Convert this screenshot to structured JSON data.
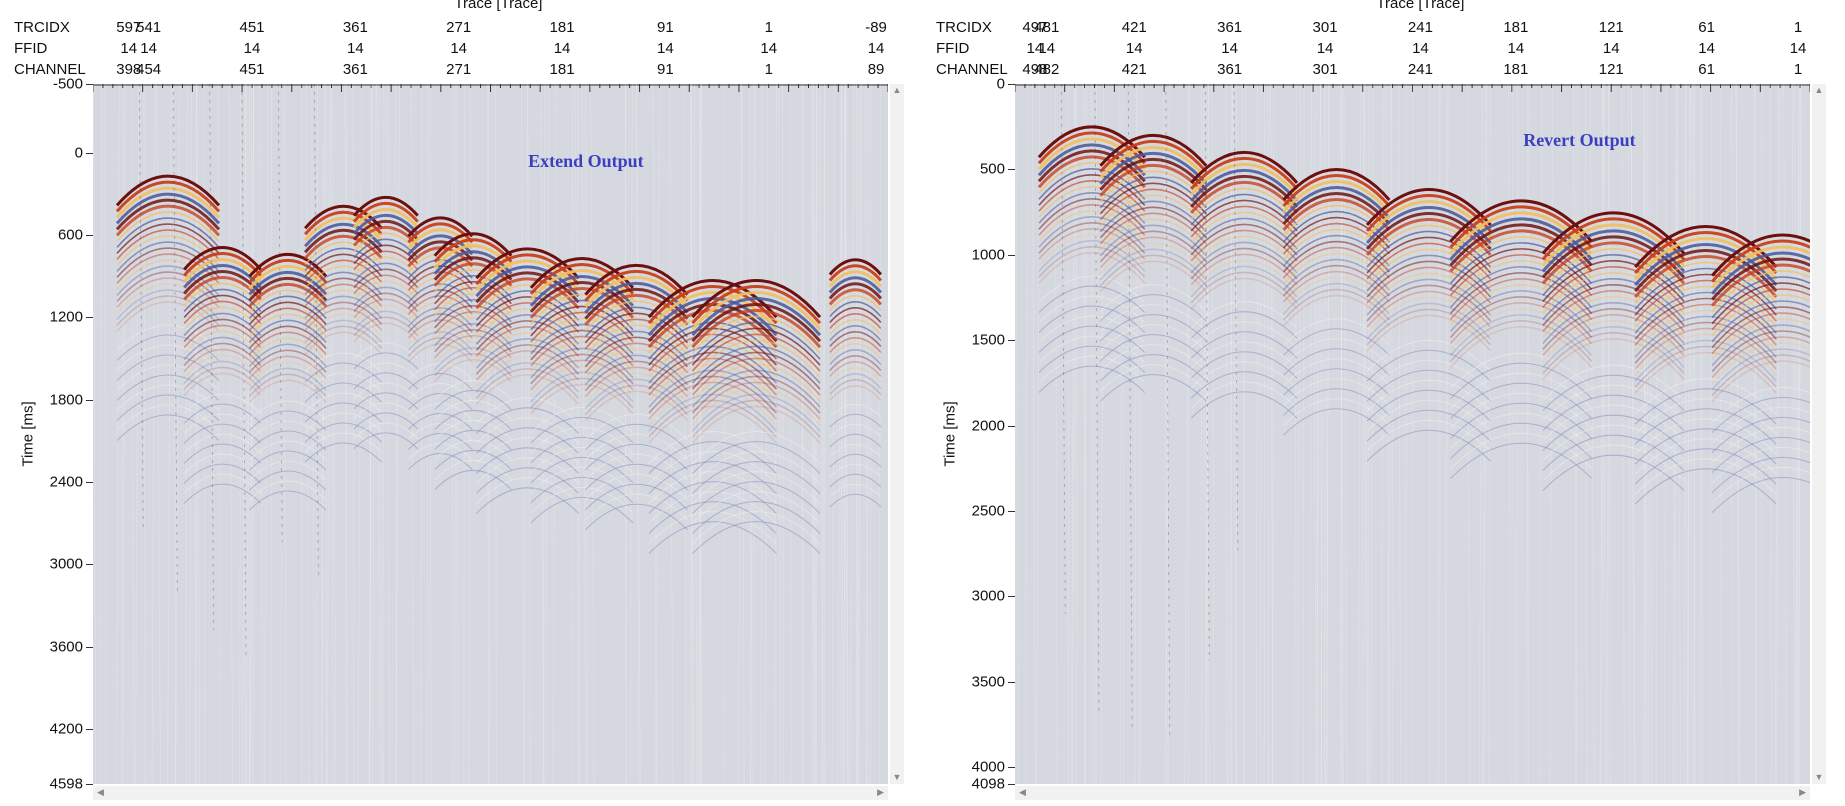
{
  "panels": [
    {
      "id": "extend",
      "label": "Extend Output",
      "axis_title": "Trace [Trace]",
      "ylabel": "Time [ms]",
      "header_rows": [
        {
          "name": "TRCIDX",
          "values": [
            "597",
            "541",
            "451",
            "361",
            "271",
            "181",
            "91",
            "1",
            "-89"
          ]
        },
        {
          "name": "FFID",
          "values": [
            "14",
            "14",
            "14",
            "14",
            "14",
            "14",
            "14",
            "14",
            "14"
          ]
        },
        {
          "name": "CHANNEL",
          "values": [
            "398",
            "454",
            "451",
            "361",
            "271",
            "181",
            "91",
            "1",
            "89"
          ]
        }
      ],
      "yticks": [
        "-500",
        "0",
        "600",
        "1200",
        "1800",
        "2400",
        "3000",
        "3600",
        "4200",
        "4598"
      ]
    },
    {
      "id": "revert",
      "label": "Revert Output",
      "axis_title": "Trace [Trace]",
      "ylabel": "Time [ms]",
      "header_rows": [
        {
          "name": "TRCIDX",
          "values": [
            "497",
            "481",
            "421",
            "361",
            "301",
            "241",
            "181",
            "121",
            "61",
            "1"
          ]
        },
        {
          "name": "FFID",
          "values": [
            "14",
            "14",
            "14",
            "14",
            "14",
            "14",
            "14",
            "14",
            "14",
            "14"
          ]
        },
        {
          "name": "CHANNEL",
          "values": [
            "498",
            "482",
            "421",
            "361",
            "301",
            "241",
            "181",
            "121",
            "61",
            "1"
          ]
        }
      ],
      "yticks": [
        "0",
        "500",
        "1000",
        "1500",
        "2000",
        "2500",
        "3000",
        "3500",
        "4000",
        "4098"
      ]
    }
  ],
  "chart_data": [
    {
      "type": "heatmap",
      "title": "Extend Output",
      "xlabel": "Trace [Trace]",
      "ylabel": "Time [ms]",
      "x_ticks": [
        "597",
        "541",
        "451",
        "361",
        "271",
        "181",
        "91",
        "1",
        "-89"
      ],
      "ylim": [
        -500,
        4598
      ],
      "y_ticks": [
        -500,
        0,
        600,
        1200,
        1800,
        2400,
        3000,
        3600,
        4200,
        4598
      ],
      "events": [
        {
          "trace": 561,
          "apex_ms": 50,
          "width": 40
        },
        {
          "trace": 511,
          "apex_ms": 600,
          "width": 30
        },
        {
          "trace": 451,
          "apex_ms": 650,
          "width": 30
        },
        {
          "trace": 400,
          "apex_ms": 300,
          "width": 30
        },
        {
          "trace": 361,
          "apex_ms": 250,
          "width": 25
        },
        {
          "trace": 311,
          "apex_ms": 400,
          "width": 25
        },
        {
          "trace": 281,
          "apex_ms": 500,
          "width": 30
        },
        {
          "trace": 231,
          "apex_ms": 580,
          "width": 40
        },
        {
          "trace": 181,
          "apex_ms": 650,
          "width": 40
        },
        {
          "trace": 131,
          "apex_ms": 700,
          "width": 40
        },
        {
          "trace": 61,
          "apex_ms": 780,
          "width": 50
        },
        {
          "trace": 21,
          "apex_ms": 780,
          "width": 50
        },
        {
          "trace": -70,
          "apex_ms": 720,
          "width": 20
        }
      ]
    },
    {
      "type": "heatmap",
      "title": "Revert Output",
      "xlabel": "Trace [Trace]",
      "ylabel": "Time [ms]",
      "x_ticks": [
        "497",
        "481",
        "421",
        "361",
        "301",
        "241",
        "181",
        "121",
        "61",
        "1"
      ],
      "ylim": [
        0,
        4098
      ],
      "y_ticks": [
        0,
        500,
        1000,
        1500,
        2000,
        2500,
        3000,
        3500,
        4000,
        4098
      ],
      "events": [
        {
          "trace": 460,
          "apex_ms": 150,
          "width": 30
        },
        {
          "trace": 420,
          "apex_ms": 200,
          "width": 30
        },
        {
          "trace": 361,
          "apex_ms": 300,
          "width": 30
        },
        {
          "trace": 301,
          "apex_ms": 400,
          "width": 30
        },
        {
          "trace": 241,
          "apex_ms": 500,
          "width": 35
        },
        {
          "trace": 181,
          "apex_ms": 550,
          "width": 40
        },
        {
          "trace": 121,
          "apex_ms": 620,
          "width": 40
        },
        {
          "trace": 61,
          "apex_ms": 700,
          "width": 40
        },
        {
          "trace": 11,
          "apex_ms": 750,
          "width": 40
        }
      ]
    }
  ]
}
